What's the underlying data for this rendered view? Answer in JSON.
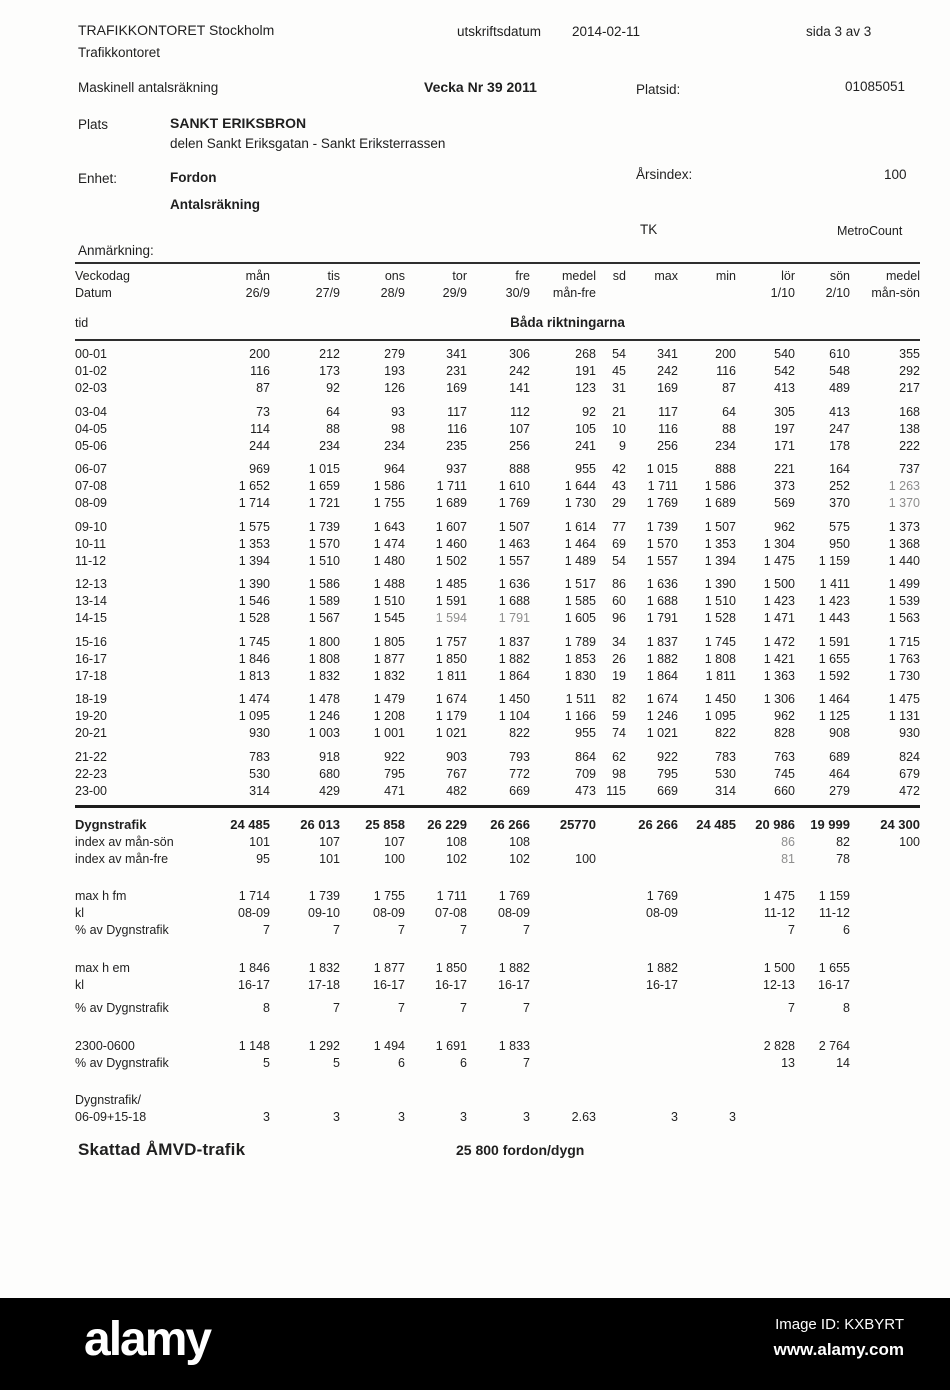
{
  "header": {
    "org_line1": "TRAFIKKONTORET Stockholm",
    "org_line2": "Trafikkontoret",
    "print_label": "utskriftsdatum",
    "print_date": "2014-02-11",
    "page": "sida 3 av 3",
    "report_type": "Maskinell antalsräkning",
    "week": "Vecka Nr 39 2011",
    "platsid_label": "Platsid:",
    "platsid_value": "01085051"
  },
  "meta": {
    "plats_label": "Plats",
    "plats_name": "SANKT ERIKSBRON",
    "plats_detail": "delen Sankt Eriksgatan - Sankt Eriksterrassen",
    "enhet_label": "Enhet:",
    "enhet_value": "Fordon",
    "count_type": "Antalsräkning",
    "arsindex_label": "Årsindex:",
    "arsindex_value": "100",
    "tk": "TK",
    "metrocount": "MetroCount",
    "anmarkning_label": "Anmärkning:"
  },
  "table": {
    "columns": [
      {
        "l1": "Veckodag",
        "l2": "Datum"
      },
      {
        "l1": "mån",
        "l2": "26/9"
      },
      {
        "l1": "tis",
        "l2": "27/9"
      },
      {
        "l1": "ons",
        "l2": "28/9"
      },
      {
        "l1": "tor",
        "l2": "29/9"
      },
      {
        "l1": "fre",
        "l2": "30/9"
      },
      {
        "l1": "medel",
        "l2": "mån-fre"
      },
      {
        "l1": "sd",
        "l2": ""
      },
      {
        "l1": "max",
        "l2": ""
      },
      {
        "l1": "min",
        "l2": ""
      },
      {
        "l1": "lör",
        "l2": "1/10"
      },
      {
        "l1": "sön",
        "l2": "2/10"
      },
      {
        "l1": "medel",
        "l2": "mån-sön"
      }
    ],
    "tid_label": "tid",
    "direction_label": "Båda riktningarna",
    "hour_rows": [
      {
        "class": "",
        "cells": [
          "00-01",
          "200",
          "212",
          "279",
          "341",
          "306",
          "268",
          "54",
          "341",
          "200",
          "540",
          "610",
          "355"
        ]
      },
      {
        "class": "",
        "cells": [
          "01-02",
          "116",
          "173",
          "193",
          "231",
          "242",
          "191",
          "45",
          "242",
          "116",
          "542",
          "548",
          "292"
        ]
      },
      {
        "class": "",
        "cells": [
          "02-03",
          "87",
          "92",
          "126",
          "169",
          "141",
          "123",
          "31",
          "169",
          "87",
          "413",
          "489",
          "217"
        ]
      },
      {
        "class": "gap",
        "cells": [
          "03-04",
          "73",
          "64",
          "93",
          "117",
          "112",
          "92",
          "21",
          "117",
          "64",
          "305",
          "413",
          "168"
        ]
      },
      {
        "class": "",
        "cells": [
          "04-05",
          "114",
          "88",
          "98",
          "116",
          "107",
          "105",
          "10",
          "116",
          "88",
          "197",
          "247",
          "138"
        ]
      },
      {
        "class": "",
        "cells": [
          "05-06",
          "244",
          "234",
          "234",
          "235",
          "256",
          "241",
          "9",
          "256",
          "234",
          "171",
          "178",
          "222"
        ]
      },
      {
        "class": "gap",
        "cells": [
          "06-07",
          "969",
          "1 015",
          "964",
          "937",
          "888",
          "955",
          "42",
          "1 015",
          "888",
          "221",
          "164",
          "737"
        ]
      },
      {
        "class": "",
        "cells": [
          "07-08",
          "1 652",
          "1 659",
          "1 586",
          "1 711",
          "1 610",
          "1 644",
          "43",
          "1 711",
          "1 586",
          "373",
          "252",
          {
            "t": "1 263",
            "c": "light"
          }
        ]
      },
      {
        "class": "",
        "cells": [
          "08-09",
          "1 714",
          "1 721",
          "1 755",
          "1 689",
          "1 769",
          "1 730",
          "29",
          "1 769",
          "1 689",
          "569",
          "370",
          {
            "t": "1 370",
            "c": "light"
          }
        ]
      },
      {
        "class": "gap",
        "cells": [
          "09-10",
          "1 575",
          "1 739",
          "1 643",
          "1 607",
          "1 507",
          "1 614",
          "77",
          "1 739",
          "1 507",
          "962",
          "575",
          "1 373"
        ]
      },
      {
        "class": "",
        "cells": [
          "10-11",
          "1 353",
          "1 570",
          "1 474",
          "1 460",
          "1 463",
          "1 464",
          "69",
          "1 570",
          "1 353",
          "1 304",
          "950",
          "1 368"
        ]
      },
      {
        "class": "",
        "cells": [
          "11-12",
          "1 394",
          "1 510",
          "1 480",
          "1 502",
          "1 557",
          "1 489",
          "54",
          "1 557",
          "1 394",
          "1 475",
          "1 159",
          "1 440"
        ]
      },
      {
        "class": "gap",
        "cells": [
          "12-13",
          "1 390",
          "1 586",
          "1 488",
          "1 485",
          "1 636",
          "1 517",
          "86",
          "1 636",
          "1 390",
          "1 500",
          "1 411",
          "1 499"
        ]
      },
      {
        "class": "",
        "cells": [
          "13-14",
          "1 546",
          "1 589",
          "1 510",
          "1 591",
          "1 688",
          "1 585",
          "60",
          "1 688",
          "1 510",
          "1 423",
          "1 423",
          "1 539"
        ]
      },
      {
        "class": "",
        "cells": [
          "14-15",
          "1 528",
          "1 567",
          "1 545",
          {
            "t": "1 594",
            "c": "light"
          },
          {
            "t": "1 791",
            "c": "light"
          },
          "1 605",
          "96",
          "1 791",
          "1 528",
          "1 471",
          "1 443",
          "1 563"
        ]
      },
      {
        "class": "gap",
        "cells": [
          "15-16",
          "1 745",
          "1 800",
          "1 805",
          "1 757",
          "1 837",
          "1 789",
          "34",
          "1 837",
          "1 745",
          "1 472",
          "1 591",
          "1 715"
        ]
      },
      {
        "class": "",
        "cells": [
          "16-17",
          "1 846",
          "1 808",
          "1 877",
          "1 850",
          "1 882",
          "1 853",
          "26",
          "1 882",
          "1 808",
          "1 421",
          "1 655",
          "1 763"
        ]
      },
      {
        "class": "",
        "cells": [
          "17-18",
          "1 813",
          "1 832",
          "1 832",
          "1 811",
          "1 864",
          "1 830",
          "19",
          "1 864",
          "1 811",
          "1 363",
          "1 592",
          "1 730"
        ]
      },
      {
        "class": "gap",
        "cells": [
          "18-19",
          "1 474",
          "1 478",
          "1 479",
          "1 674",
          "1 450",
          "1 511",
          "82",
          "1 674",
          "1 450",
          "1 306",
          "1 464",
          "1 475"
        ]
      },
      {
        "class": "",
        "cells": [
          "19-20",
          "1 095",
          "1 246",
          "1 208",
          "1 179",
          "1 104",
          "1 166",
          "59",
          "1 246",
          "1 095",
          "962",
          "1 125",
          "1 131"
        ]
      },
      {
        "class": "",
        "cells": [
          "20-21",
          "930",
          "1 003",
          "1 001",
          "1 021",
          "822",
          "955",
          "74",
          "1 021",
          "822",
          "828",
          "908",
          "930"
        ]
      },
      {
        "class": "gap",
        "cells": [
          "21-22",
          "783",
          "918",
          "922",
          "903",
          "793",
          "864",
          "62",
          "922",
          "783",
          "763",
          "689",
          "824"
        ]
      },
      {
        "class": "",
        "cells": [
          "22-23",
          "530",
          "680",
          "795",
          "767",
          "772",
          "709",
          "98",
          "795",
          "530",
          "745",
          "464",
          "679"
        ]
      },
      {
        "class": "",
        "cells": [
          "23-00",
          "314",
          "429",
          "471",
          "482",
          "669",
          "473",
          "115",
          "669",
          "314",
          "660",
          "279",
          "472"
        ]
      }
    ],
    "summary_rows": [
      {
        "class": "bold",
        "cells": [
          "Dygnstrafik",
          "24 485",
          "26 013",
          "25 858",
          "26 229",
          "26 266",
          "25770",
          "",
          "26 266",
          "24 485",
          "20 986",
          "19 999",
          "24 300"
        ]
      },
      {
        "class": "",
        "cells": [
          "index av mån-sön",
          "101",
          "107",
          "107",
          "108",
          "108",
          "",
          "",
          "",
          "",
          {
            "t": "86",
            "c": "light"
          },
          "82",
          "100"
        ]
      },
      {
        "class": "",
        "cells": [
          "index av mån-fre",
          "95",
          "101",
          "100",
          "102",
          "102",
          "100",
          "",
          "",
          "",
          {
            "t": "81",
            "c": "light"
          },
          "78",
          ""
        ]
      },
      {
        "class": "gapbig",
        "cells": [
          "max h fm",
          "1 714",
          "1 739",
          "1 755",
          "1 711",
          "1 769",
          "",
          "",
          "1 769",
          "",
          "1 475",
          "1 159",
          ""
        ]
      },
      {
        "class": "",
        "cells": [
          "kl",
          "08-09",
          "09-10",
          "08-09",
          "07-08",
          "08-09",
          "",
          "",
          "08-09",
          "",
          "11-12",
          "11-12",
          ""
        ]
      },
      {
        "class": "",
        "cells": [
          "% av Dygnstrafik",
          "7",
          "7",
          "7",
          "7",
          "7",
          "",
          "",
          "",
          "",
          "7",
          "6",
          ""
        ]
      },
      {
        "class": "gapbig",
        "cells": [
          "max h em",
          "1 846",
          "1 832",
          "1 877",
          "1 850",
          "1 882",
          "",
          "",
          "1 882",
          "",
          "1 500",
          "1 655",
          ""
        ]
      },
      {
        "class": "",
        "cells": [
          "kl",
          "16-17",
          "17-18",
          "16-17",
          "16-17",
          "16-17",
          "",
          "",
          "16-17",
          "",
          "12-13",
          "16-17",
          ""
        ]
      },
      {
        "class": "gapsm",
        "cells": [
          "% av Dygnstrafik",
          "8",
          "7",
          "7",
          "7",
          "7",
          "",
          "",
          "",
          "",
          "7",
          "8",
          ""
        ]
      },
      {
        "class": "gapbig",
        "cells": [
          "2300-0600",
          "1 148",
          "1 292",
          "1 494",
          "1 691",
          "1 833",
          "",
          "",
          "",
          "",
          "2 828",
          "2 764",
          ""
        ]
      },
      {
        "class": "",
        "cells": [
          "% av Dygnstrafik",
          "5",
          "5",
          "6",
          "6",
          "7",
          "",
          "",
          "",
          "",
          "13",
          "14",
          ""
        ]
      },
      {
        "class": "gapbig",
        "cells": [
          "Dygnstrafik/",
          "",
          "",
          "",
          "",
          "",
          "",
          "",
          "",
          "",
          "",
          "",
          ""
        ]
      },
      {
        "class": "",
        "cells": [
          "06-09+15-18",
          "3",
          "3",
          "3",
          "3",
          "3",
          {
            "t": "2.63",
            "c": "shift"
          },
          "",
          "3",
          "3",
          "",
          "",
          ""
        ]
      }
    ]
  },
  "amvd": {
    "label": "Skattad ÅMVD-trafik",
    "value": "25 800 fordon/dygn"
  },
  "watermark": {
    "logo": "alamy",
    "image_id": "Image ID: KXBYRT",
    "url": "www.alamy.com"
  }
}
